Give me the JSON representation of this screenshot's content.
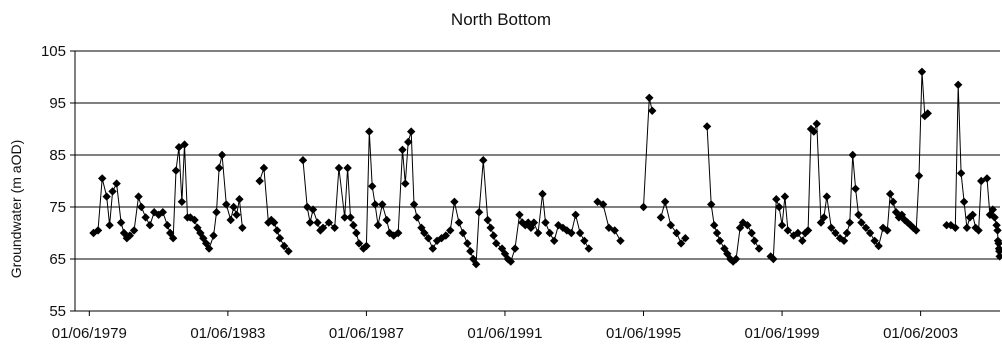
{
  "chart_data": {
    "type": "line",
    "title": "North Bottom",
    "xlabel": "",
    "ylabel": "Groundwater (m aOD)",
    "ylim": [
      55,
      105
    ],
    "yticks": [
      55,
      65,
      75,
      85,
      95,
      105
    ],
    "xlim": [
      "1979-01-01",
      "2005-09-15"
    ],
    "xticks": [
      "1979-06-01",
      "1983-06-01",
      "1987-06-01",
      "1991-06-01",
      "1995-06-01",
      "1999-06-01",
      "2003-06-01"
    ],
    "xtick_labels": [
      "01/06/1979",
      "01/06/1983",
      "01/06/1987",
      "01/06/1991",
      "01/06/1995",
      "01/06/1999",
      "01/06/2003"
    ],
    "grid": "horizontal",
    "marker": "diamond",
    "color": "#000000",
    "segments": [
      [
        [
          "1979-07-15",
          70
        ],
        [
          "1979-09-01",
          70.5
        ],
        [
          "1979-10-15",
          80.5
        ],
        [
          "1979-12-01",
          77
        ],
        [
          "1980-01-01",
          71.5
        ],
        [
          "1980-02-01",
          78
        ],
        [
          "1980-03-15",
          79.5
        ],
        [
          "1980-05-01",
          72
        ],
        [
          "1980-06-01",
          70
        ],
        [
          "1980-07-01",
          69
        ],
        [
          "1980-08-01",
          69.5
        ],
        [
          "1980-09-15",
          70.5
        ],
        [
          "1980-11-01",
          77
        ],
        [
          "1980-12-01",
          75
        ],
        [
          "1981-01-15",
          73
        ],
        [
          "1981-03-01",
          71.5
        ],
        [
          "1981-04-15",
          74
        ],
        [
          "1981-06-01",
          73.5
        ],
        [
          "1981-07-15",
          74
        ],
        [
          "1981-09-01",
          71.5
        ],
        [
          "1981-10-01",
          70
        ],
        [
          "1981-11-01",
          69
        ],
        [
          "1981-12-01",
          82
        ],
        [
          "1982-01-01",
          86.5
        ],
        [
          "1982-02-01",
          76
        ],
        [
          "1982-03-01",
          87
        ],
        [
          "1982-04-01",
          73
        ],
        [
          "1982-05-01",
          73
        ],
        [
          "1982-06-15",
          72.5
        ],
        [
          "1982-07-15",
          71
        ],
        [
          "1982-08-15",
          70
        ],
        [
          "1982-09-15",
          69
        ],
        [
          "1982-10-15",
          68
        ],
        [
          "1982-11-15",
          67
        ],
        [
          "1983-01-01",
          69.5
        ],
        [
          "1983-02-01",
          74
        ],
        [
          "1983-03-01",
          82.5
        ],
        [
          "1983-04-01",
          85
        ],
        [
          "1983-05-15",
          75.5
        ],
        [
          "1983-07-01",
          72.5
        ],
        [
          "1983-08-01",
          75
        ],
        [
          "1983-09-01",
          73.5
        ],
        [
          "1983-10-01",
          76.5
        ],
        [
          "1983-11-01",
          71
        ]
      ],
      [
        [
          "1984-05-01",
          80
        ],
        [
          "1984-06-15",
          82.5
        ],
        [
          "1984-08-01",
          72
        ],
        [
          "1984-09-01",
          72.5
        ],
        [
          "1984-10-01",
          72
        ],
        [
          "1984-11-01",
          70.5
        ],
        [
          "1984-12-01",
          69
        ],
        [
          "1985-01-15",
          67.5
        ],
        [
          "1985-03-01",
          66.5
        ]
      ],
      [
        [
          "1985-08-01",
          84
        ],
        [
          "1985-09-15",
          75
        ],
        [
          "1985-10-15",
          72
        ],
        [
          "1985-11-15",
          74.5
        ],
        [
          "1986-01-01",
          72
        ],
        [
          "1986-02-01",
          70.5
        ],
        [
          "1986-03-01",
          71
        ],
        [
          "1986-05-01",
          72
        ],
        [
          "1986-07-01",
          71
        ],
        [
          "1986-08-15",
          82.5
        ],
        [
          "1986-10-15",
          73
        ],
        [
          "1986-11-15",
          82.5
        ],
        [
          "1986-12-15",
          73
        ],
        [
          "1987-01-15",
          71.5
        ],
        [
          "1987-02-15",
          70
        ],
        [
          "1987-03-15",
          68
        ],
        [
          "1987-05-01",
          67
        ],
        [
          "1987-06-01",
          67.5
        ],
        [
          "1987-07-01",
          89.5
        ],
        [
          "1987-08-01",
          79
        ],
        [
          "1987-09-01",
          75.5
        ],
        [
          "1987-10-01",
          71.5
        ],
        [
          "1987-11-15",
          75.5
        ],
        [
          "1988-01-01",
          72.5
        ],
        [
          "1988-02-01",
          70
        ],
        [
          "1988-03-15",
          69.5
        ],
        [
          "1988-05-01",
          70
        ],
        [
          "1988-06-15",
          86
        ],
        [
          "1988-07-15",
          79.5
        ],
        [
          "1988-08-15",
          87.5
        ],
        [
          "1988-09-15",
          89.5
        ],
        [
          "1988-10-15",
          75.5
        ],
        [
          "1988-11-15",
          73
        ],
        [
          "1989-01-01",
          71
        ],
        [
          "1989-02-01",
          70
        ],
        [
          "1989-03-15",
          69
        ],
        [
          "1989-05-01",
          67
        ],
        [
          "1989-06-15",
          68.5
        ],
        [
          "1989-08-01",
          69
        ],
        [
          "1989-09-15",
          69.5
        ],
        [
          "1989-11-01",
          70.5
        ],
        [
          "1989-12-15",
          76
        ],
        [
          "1990-02-01",
          72
        ],
        [
          "1990-03-15",
          70
        ],
        [
          "1990-05-01",
          68
        ],
        [
          "1990-06-01",
          66.5
        ],
        [
          "1990-07-01",
          65
        ],
        [
          "1990-08-01",
          64
        ],
        [
          "1990-09-01",
          74
        ],
        [
          "1990-10-15",
          84
        ],
        [
          "1990-12-01",
          72.5
        ],
        [
          "1991-01-01",
          71
        ],
        [
          "1991-02-01",
          69.5
        ],
        [
          "1991-03-01",
          68
        ],
        [
          "1991-05-01",
          67
        ],
        [
          "1991-06-01",
          66
        ],
        [
          "1991-07-01",
          65
        ],
        [
          "1991-08-01",
          64.5
        ],
        [
          "1991-09-15",
          67
        ],
        [
          "1991-11-01",
          73.5
        ],
        [
          "1991-12-01",
          72
        ],
        [
          "1992-01-01",
          71.5
        ],
        [
          "1992-02-01",
          72
        ],
        [
          "1992-03-01",
          71
        ],
        [
          "1992-04-01",
          72
        ],
        [
          "1992-05-15",
          70
        ],
        [
          "1992-07-01",
          77.5
        ],
        [
          "1992-08-01",
          72
        ],
        [
          "1992-09-15",
          70
        ],
        [
          "1992-11-01",
          68.5
        ],
        [
          "1992-12-15",
          71.5
        ],
        [
          "1993-02-01",
          71
        ],
        [
          "1993-03-15",
          70.5
        ],
        [
          "1993-05-01",
          70
        ],
        [
          "1993-06-15",
          73.5
        ],
        [
          "1993-08-01",
          70
        ],
        [
          "1993-09-15",
          68.5
        ],
        [
          "1993-11-01",
          67
        ]
      ],
      [
        [
          "1994-02-01",
          76
        ],
        [
          "1994-04-01",
          75.5
        ],
        [
          "1994-06-01",
          71
        ],
        [
          "1994-08-01",
          70.5
        ],
        [
          "1994-10-01",
          68.5
        ]
      ],
      [
        [
          "1995-06-01",
          75
        ],
        [
          "1995-08-01",
          96
        ],
        [
          "1995-09-01",
          93.5
        ]
      ],
      [
        [
          "1995-12-01",
          73
        ],
        [
          "1996-01-15",
          76
        ],
        [
          "1996-03-15",
          71.5
        ],
        [
          "1996-05-15",
          70
        ],
        [
          "1996-07-01",
          68
        ],
        [
          "1996-08-15",
          69
        ]
      ],
      [
        [
          "1997-04-01",
          90.5
        ],
        [
          "1997-05-15",
          75.5
        ],
        [
          "1997-06-15",
          71.5
        ],
        [
          "1997-07-15",
          70
        ],
        [
          "1997-08-15",
          68.5
        ],
        [
          "1997-10-01",
          67
        ],
        [
          "1997-11-01",
          66
        ],
        [
          "1997-12-01",
          65
        ],
        [
          "1998-01-01",
          64.5
        ],
        [
          "1998-02-01",
          65
        ],
        [
          "1998-03-15",
          71
        ],
        [
          "1998-04-15",
          72
        ],
        [
          "1998-06-01",
          71.5
        ],
        [
          "1998-07-15",
          70
        ],
        [
          "1998-08-15",
          68.5
        ],
        [
          "1998-10-01",
          67
        ]
      ],
      [
        [
          "1999-02-01",
          65.5
        ],
        [
          "1999-03-01",
          65
        ],
        [
          "1999-04-01",
          76.5
        ],
        [
          "1999-05-01",
          75
        ],
        [
          "1999-06-01",
          71.5
        ],
        [
          "1999-07-01",
          77
        ],
        [
          "1999-08-01",
          70.5
        ],
        [
          "1999-10-01",
          69.5
        ],
        [
          "1999-11-15",
          70
        ],
        [
          "2000-01-01",
          68.5
        ],
        [
          "2000-02-01",
          70
        ],
        [
          "2000-03-01",
          70.5
        ],
        [
          "2000-04-01",
          90
        ],
        [
          "2000-05-01",
          89.5
        ],
        [
          "2000-06-01",
          91
        ],
        [
          "2000-07-15",
          72
        ],
        [
          "2000-08-15",
          73
        ],
        [
          "2000-09-15",
          77
        ],
        [
          "2000-11-01",
          71
        ],
        [
          "2000-12-15",
          70
        ],
        [
          "2001-02-01",
          69
        ],
        [
          "2001-03-15",
          68.5
        ],
        [
          "2001-04-15",
          70
        ],
        [
          "2001-05-15",
          72
        ],
        [
          "2001-06-15",
          85
        ],
        [
          "2001-07-15",
          78.5
        ],
        [
          "2001-08-15",
          73.5
        ],
        [
          "2001-09-15",
          72
        ],
        [
          "2001-11-01",
          71
        ],
        [
          "2001-12-15",
          70
        ],
        [
          "2002-02-01",
          68.5
        ],
        [
          "2002-03-15",
          67.5
        ],
        [
          "2002-05-01",
          71
        ],
        [
          "2002-06-15",
          70.5
        ],
        [
          "2002-07-15",
          77.5
        ],
        [
          "2002-08-15",
          76
        ],
        [
          "2002-09-15",
          74
        ],
        [
          "2002-10-15",
          73
        ],
        [
          "2002-11-15",
          73.5
        ],
        [
          "2002-12-15",
          72.5
        ],
        [
          "2003-01-15",
          72
        ],
        [
          "2003-02-15",
          71.5
        ],
        [
          "2003-03-15",
          71
        ],
        [
          "2003-04-15",
          70.5
        ],
        [
          "2003-05-15",
          81
        ],
        [
          "2003-06-15",
          101
        ],
        [
          "2003-07-15",
          92.5
        ],
        [
          "2003-08-15",
          93
        ]
      ],
      [
        [
          "2004-03-01",
          71.5
        ],
        [
          "2004-04-15",
          71.5
        ],
        [
          "2004-06-01",
          71
        ],
        [
          "2004-07-01",
          98.5
        ],
        [
          "2004-08-01",
          81.5
        ],
        [
          "2004-09-01",
          76
        ],
        [
          "2004-10-01",
          71
        ],
        [
          "2004-11-01",
          73
        ],
        [
          "2004-12-01",
          73.5
        ],
        [
          "2005-01-01",
          71
        ],
        [
          "2005-02-01",
          70.5
        ],
        [
          "2005-03-01",
          80
        ]
      ],
      [
        [
          "2005-07-01",
          74.5
        ],
        [
          "2005-07-20",
          73
        ],
        [
          "2005-08-10",
          71.5
        ],
        [
          "2005-08-20",
          70.5
        ],
        [
          "2005-08-25",
          68.5
        ],
        [
          "2005-09-01",
          68
        ],
        [
          "2005-09-05",
          67
        ],
        [
          "2005-09-08",
          66.5
        ],
        [
          "2005-09-12",
          65.5
        ]
      ],
      [
        [
          "2005-05-01",
          80.5
        ],
        [
          "2005-06-01",
          73.5
        ]
      ]
    ]
  }
}
